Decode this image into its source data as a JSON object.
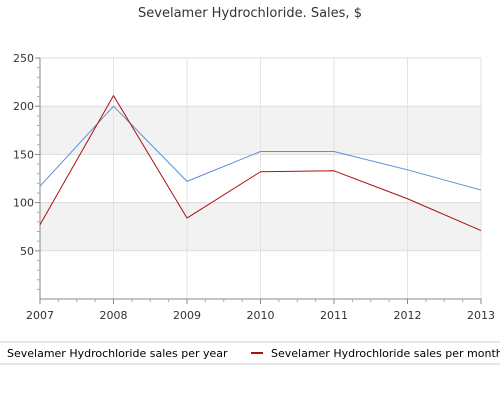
{
  "chart_data": {
    "type": "line",
    "title": "Sevelamer Hydrochloride. Sales, $",
    "xlabel": "",
    "ylabel": "",
    "categories": [
      "2007",
      "2008",
      "2009",
      "2010",
      "2011",
      "2012",
      "2013"
    ],
    "y_ticks": [
      "50",
      "100",
      "150",
      "200",
      "250"
    ],
    "ylim": [
      0,
      250
    ],
    "grid": true,
    "legend_position": "bottom",
    "series": [
      {
        "name": "Sevelamer Hydrochloride sales per year",
        "color": "#5b8fd6",
        "values": [
          117,
          200,
          122,
          153,
          153,
          134,
          113
        ]
      },
      {
        "name": "Sevelamer Hydrochloride sales per month",
        "color": "#aa1111",
        "values": [
          77,
          211,
          84,
          132,
          133,
          104,
          71
        ]
      }
    ]
  }
}
